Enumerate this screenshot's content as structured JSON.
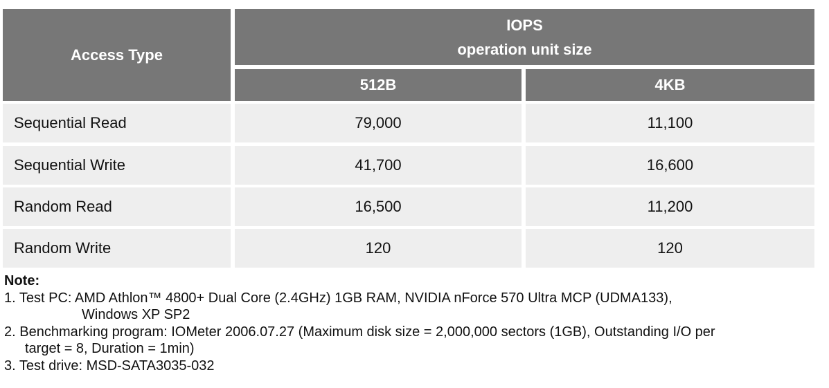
{
  "table": {
    "header": {
      "access_type": "Access Type",
      "iops_title": "IOPS",
      "iops_subtitle": "operation unit size",
      "col_512": "512B",
      "col_4k": "4KB"
    },
    "rows": [
      {
        "type": "Sequential Read",
        "v512": "79,000",
        "v4k": "11,100"
      },
      {
        "type": "Sequential Write",
        "v512": "41,700",
        "v4k": "16,600"
      },
      {
        "type": "Random Read",
        "v512": "16,500",
        "v4k": "11,200"
      },
      {
        "type": "Random Write",
        "v512": "120",
        "v4k": "120"
      }
    ]
  },
  "notes": {
    "title": "Note:",
    "line1a": "1. Test PC: AMD Athlon™ 4800+ Dual Core (2.4GHz) 1GB RAM, NVIDIA nForce 570 Ultra MCP (UDMA133),",
    "line1b": "Windows XP SP2",
    "line2a": "2.  Benchmarking program: IOMeter 2006.07.27 (Maximum disk size  = 2,000,000 sectors (1GB), Outstanding I/O per",
    "line2b": "target = 8, Duration = 1min)",
    "line3": "3. Test drive: MSD-SATA3035-032"
  }
}
